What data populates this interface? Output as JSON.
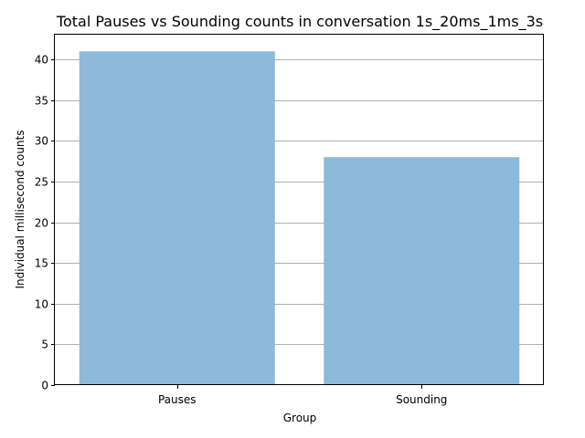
{
  "chart_data": {
    "type": "bar",
    "title": "Total Pauses vs Sounding counts in conversation 1s_20ms_1ms_3s",
    "xlabel": "Group",
    "ylabel": "Individual millisecond counts",
    "categories": [
      "Pauses",
      "Sounding"
    ],
    "values": [
      41,
      28
    ],
    "ylim": [
      0,
      43.05
    ],
    "yticks": [
      0,
      5,
      10,
      15,
      20,
      25,
      30,
      35,
      40
    ],
    "grid": "y-major",
    "bar_color": "#8db9db",
    "grid_color": "#b0b0b0"
  }
}
